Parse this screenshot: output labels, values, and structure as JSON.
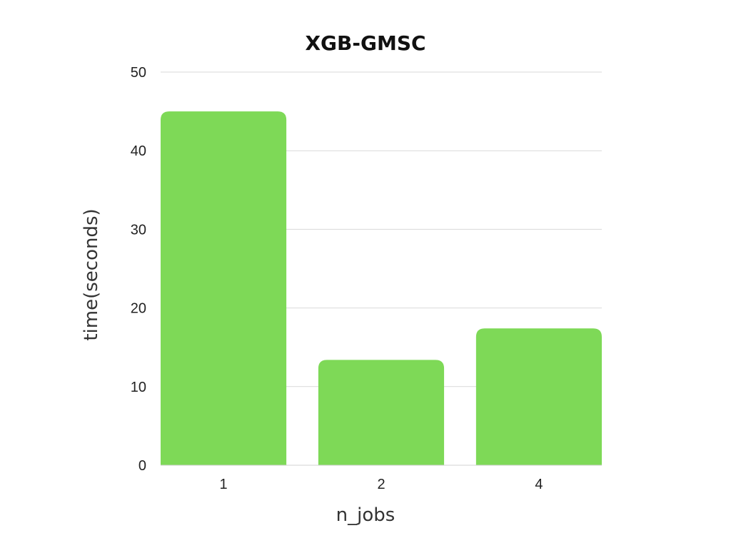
{
  "chart_data": {
    "type": "bar",
    "title": "XGB-GMSC",
    "xlabel": "n_jobs",
    "ylabel": "time(seconds)",
    "categories": [
      "1",
      "2",
      "4"
    ],
    "values": [
      45,
      13.4,
      17.4
    ],
    "ylim": [
      0,
      50
    ],
    "yticks": [
      0,
      10,
      20,
      30,
      40,
      50
    ],
    "grid": true,
    "legend": "none",
    "colors": {
      "bar": "#7ED957"
    }
  }
}
